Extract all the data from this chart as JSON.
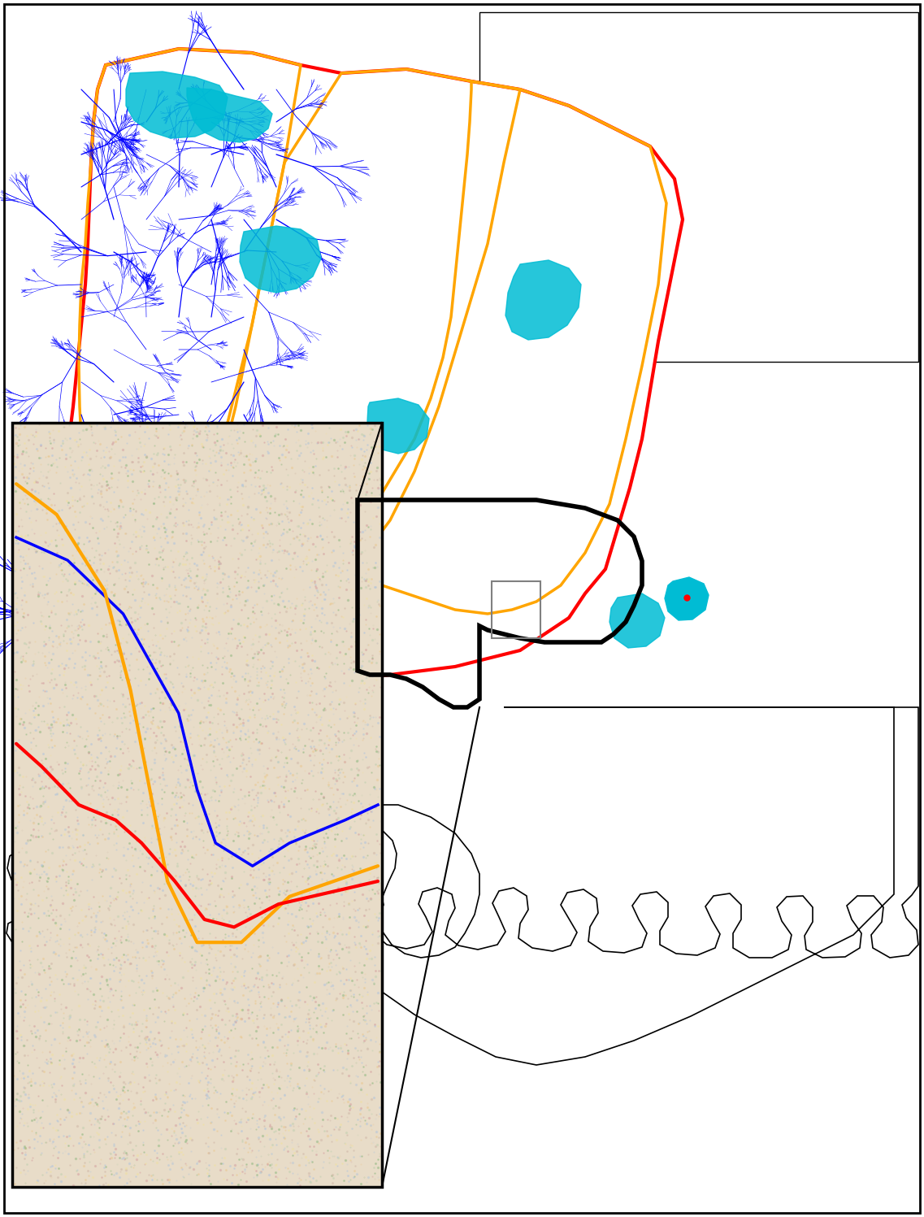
{
  "figure_bg": "#ffffff",
  "main_map_bg": "#ffffff",
  "watershed_boundary_color": "#ff0000",
  "subwatershed_boundary_color": "#ffa500",
  "river_color": "#0000ff",
  "reservoir_color": "#00bcd4",
  "city_boundary_color": "#000000",
  "inset_border_color": "#000000",
  "state_outline_color": "#000000",
  "connection_line_color": "#000000",
  "inset_bg": "#d4c5a0",
  "outer_border_color": "#000000"
}
